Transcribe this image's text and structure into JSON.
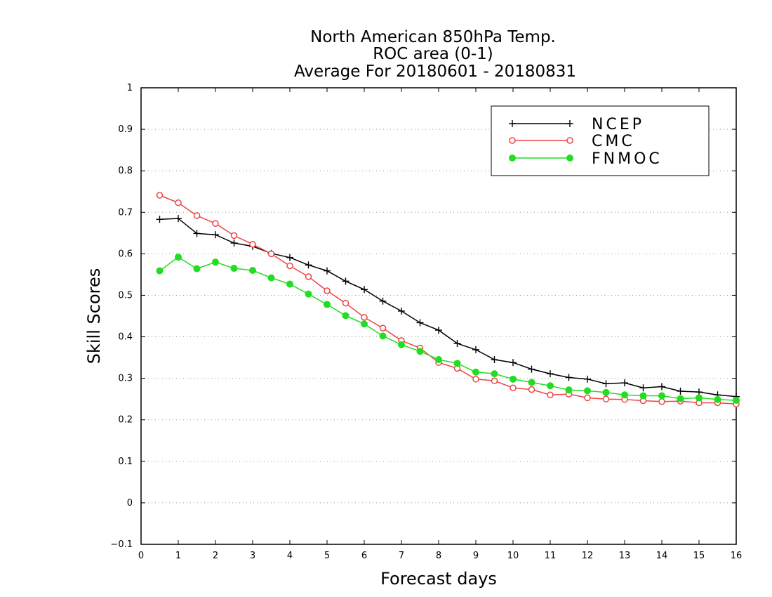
{
  "chart_data": {
    "type": "line",
    "title": [
      "North American 850hPa Temp.",
      "ROC area (0-1)",
      "Average For 20180601 - 20180831"
    ],
    "xlabel": "Forecast days",
    "ylabel": "Skill Scores",
    "xlim": [
      0,
      16
    ],
    "ylim": [
      -0.1,
      1
    ],
    "xticks": [
      "0",
      "1",
      "2",
      "3",
      "4",
      "5",
      "6",
      "7",
      "8",
      "9",
      "10",
      "11",
      "12",
      "13",
      "14",
      "15",
      "16"
    ],
    "yticks": [
      "−0.1",
      "0",
      "0.1",
      "0.2",
      "0.3",
      "0.4",
      "0.5",
      "0.6",
      "0.7",
      "0.8",
      "0.9",
      "1"
    ],
    "grid": "horizontal dotted",
    "legend_position": "top-right",
    "x": [
      0.5,
      1,
      1.5,
      2,
      2.5,
      3,
      3.5,
      4,
      4.5,
      5,
      5.5,
      6,
      6.5,
      7,
      7.5,
      8,
      8.5,
      9,
      9.5,
      10,
      10.5,
      11,
      11.5,
      12,
      12.5,
      13,
      13.5,
      14,
      14.5,
      15,
      15.5,
      16
    ],
    "series": [
      {
        "name": "NCEP",
        "color": "#000000",
        "marker": "plus",
        "values": [
          0.683,
          0.685,
          0.649,
          0.646,
          0.626,
          0.618,
          0.601,
          0.591,
          0.573,
          0.559,
          0.534,
          0.514,
          0.486,
          0.462,
          0.434,
          0.416,
          0.384,
          0.369,
          0.345,
          0.338,
          0.322,
          0.311,
          0.302,
          0.298,
          0.287,
          0.289,
          0.277,
          0.28,
          0.269,
          0.267,
          0.26,
          0.256
        ]
      },
      {
        "name": "CMC",
        "color": "#ee4444",
        "marker": "open-circle",
        "values": [
          0.741,
          0.723,
          0.692,
          0.673,
          0.644,
          0.623,
          0.6,
          0.571,
          0.545,
          0.511,
          0.481,
          0.447,
          0.421,
          0.391,
          0.373,
          0.338,
          0.324,
          0.298,
          0.294,
          0.277,
          0.273,
          0.26,
          0.262,
          0.253,
          0.25,
          0.249,
          0.246,
          0.244,
          0.245,
          0.241,
          0.241,
          0.238
        ]
      },
      {
        "name": "FNMOC",
        "color": "#22dd22",
        "marker": "filled-circle",
        "values": [
          0.559,
          0.592,
          0.564,
          0.58,
          0.565,
          0.56,
          0.542,
          0.527,
          0.503,
          0.478,
          0.451,
          0.431,
          0.402,
          0.381,
          0.365,
          0.345,
          0.336,
          0.315,
          0.311,
          0.298,
          0.29,
          0.282,
          0.272,
          0.27,
          0.266,
          0.26,
          0.258,
          0.258,
          0.251,
          0.253,
          0.249,
          0.247
        ]
      }
    ]
  }
}
